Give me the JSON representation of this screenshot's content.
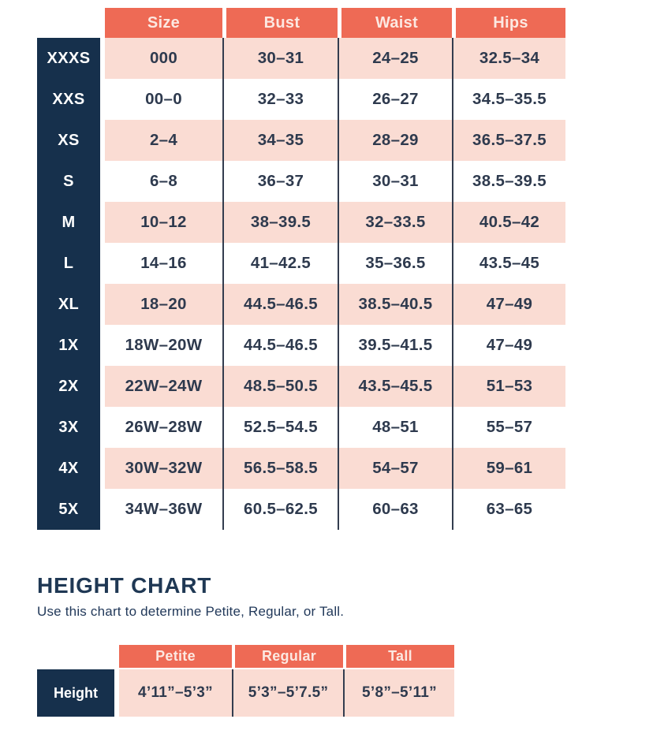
{
  "colors": {
    "coral": "#ee6a55",
    "navy": "#16304c",
    "pink_row": "#fadcd3",
    "text_navy": "#2e3a4e",
    "header_text": "#fce8e1"
  },
  "size_chart": {
    "columns": [
      "Size",
      "Bust",
      "Waist",
      "Hips"
    ],
    "rows": [
      {
        "label": "XXXS",
        "size": "000",
        "bust": "30–31",
        "waist": "24–25",
        "hips": "32.5–34"
      },
      {
        "label": "XXS",
        "size": "00–0",
        "bust": "32–33",
        "waist": "26–27",
        "hips": "34.5–35.5"
      },
      {
        "label": "XS",
        "size": "2–4",
        "bust": "34–35",
        "waist": "28–29",
        "hips": "36.5–37.5"
      },
      {
        "label": "S",
        "size": "6–8",
        "bust": "36–37",
        "waist": "30–31",
        "hips": "38.5–39.5"
      },
      {
        "label": "M",
        "size": "10–12",
        "bust": "38–39.5",
        "waist": "32–33.5",
        "hips": "40.5–42"
      },
      {
        "label": "L",
        "size": "14–16",
        "bust": "41–42.5",
        "waist": "35–36.5",
        "hips": "43.5–45"
      },
      {
        "label": "XL",
        "size": "18–20",
        "bust": "44.5–46.5",
        "waist": "38.5–40.5",
        "hips": "47–49"
      },
      {
        "label": "1X",
        "size": "18W–20W",
        "bust": "44.5–46.5",
        "waist": "39.5–41.5",
        "hips": "47–49"
      },
      {
        "label": "2X",
        "size": "22W–24W",
        "bust": "48.5–50.5",
        "waist": "43.5–45.5",
        "hips": "51–53"
      },
      {
        "label": "3X",
        "size": "26W–28W",
        "bust": "52.5–54.5",
        "waist": "48–51",
        "hips": "55–57"
      },
      {
        "label": "4X",
        "size": "30W–32W",
        "bust": "56.5–58.5",
        "waist": "54–57",
        "hips": "59–61"
      },
      {
        "label": "5X",
        "size": "34W–36W",
        "bust": "60.5–62.5",
        "waist": "60–63",
        "hips": "63–65"
      }
    ]
  },
  "height_chart": {
    "title": "HEIGHT CHART",
    "subtitle": "Use this chart to determine Petite, Regular, or Tall.",
    "columns": [
      "Petite",
      "Regular",
      "Tall"
    ],
    "row_label": "Height",
    "values": [
      "4’11”–5’3”",
      "5’3”–5’7.5”",
      "5’8”–5’11”"
    ]
  },
  "chart_data": [
    {
      "type": "table",
      "title": "Size Chart",
      "columns": [
        "(Label)",
        "Size",
        "Bust",
        "Waist",
        "Hips"
      ],
      "rows": [
        [
          "XXXS",
          "000",
          "30–31",
          "24–25",
          "32.5–34"
        ],
        [
          "XXS",
          "00–0",
          "32–33",
          "26–27",
          "34.5–35.5"
        ],
        [
          "XS",
          "2–4",
          "34–35",
          "28–29",
          "36.5–37.5"
        ],
        [
          "S",
          "6–8",
          "36–37",
          "30–31",
          "38.5–39.5"
        ],
        [
          "M",
          "10–12",
          "38–39.5",
          "32–33.5",
          "40.5–42"
        ],
        [
          "L",
          "14–16",
          "41–42.5",
          "35–36.5",
          "43.5–45"
        ],
        [
          "XL",
          "18–20",
          "44.5–46.5",
          "38.5–40.5",
          "47–49"
        ],
        [
          "1X",
          "18W–20W",
          "44.5–46.5",
          "39.5–41.5",
          "47–49"
        ],
        [
          "2X",
          "22W–24W",
          "48.5–50.5",
          "43.5–45.5",
          "51–53"
        ],
        [
          "3X",
          "26W–28W",
          "52.5–54.5",
          "48–51",
          "55–57"
        ],
        [
          "4X",
          "30W–32W",
          "56.5–58.5",
          "54–57",
          "59–61"
        ],
        [
          "5X",
          "34W–36W",
          "60.5–62.5",
          "60–63",
          "63–65"
        ]
      ]
    },
    {
      "type": "table",
      "title": "HEIGHT CHART",
      "columns": [
        "(Label)",
        "Petite",
        "Regular",
        "Tall"
      ],
      "rows": [
        [
          "Height",
          "4’11”–5’3”",
          "5’3”–5’7.5”",
          "5’8”–5’11”"
        ]
      ]
    }
  ]
}
